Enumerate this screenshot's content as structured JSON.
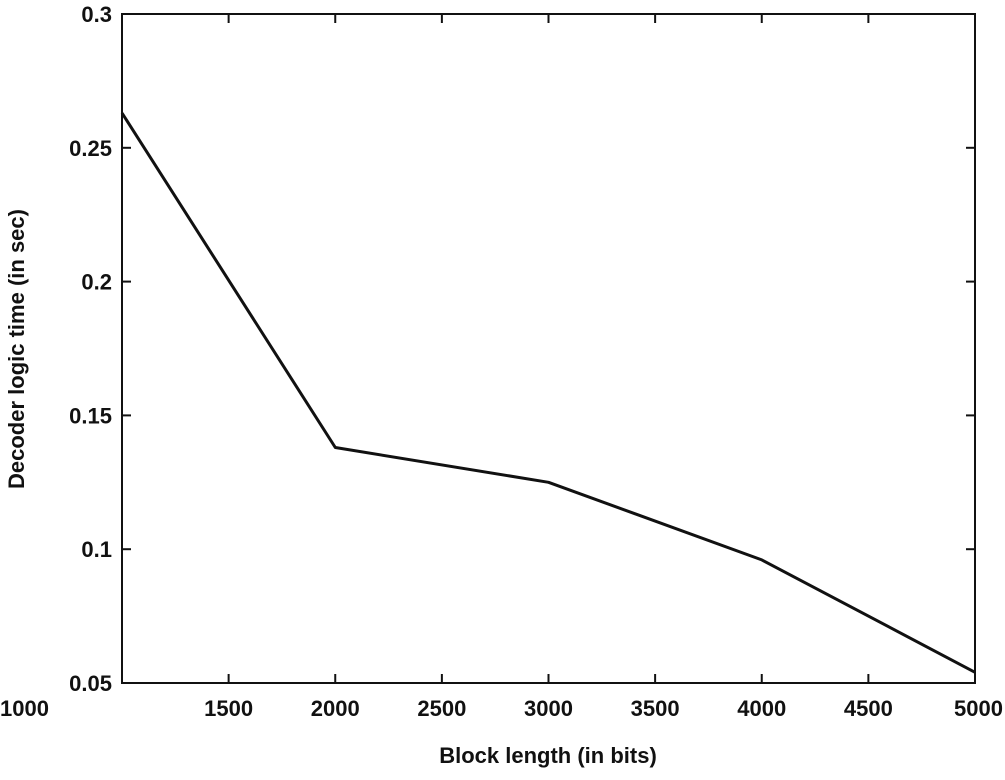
{
  "chart_data": {
    "type": "line",
    "title": "",
    "xlabel": "Block length (in bits)",
    "ylabel": "Decoder logic time (in sec)",
    "xlim": [
      1000,
      5000
    ],
    "ylim": [
      0.05,
      0.3
    ],
    "xticks": [
      1000,
      1500,
      2000,
      2500,
      3000,
      3500,
      4000,
      4500,
      5000
    ],
    "yticks": [
      0.05,
      0.1,
      0.15,
      0.2,
      0.25,
      0.3
    ],
    "xtick_labels": [
      "1000",
      "1500",
      "2000",
      "2500",
      "3000",
      "3500",
      "4000",
      "4500",
      "5000"
    ],
    "ytick_labels": [
      "0.05",
      "0.1",
      "0.15",
      "0.2",
      "0.25",
      "0.3"
    ],
    "grid": false,
    "colors": {
      "line": "#111111",
      "axes": "#111111"
    },
    "series": [
      {
        "x": [
          1000,
          2000,
          3000,
          4000,
          5000
        ],
        "y": [
          0.263,
          0.138,
          0.125,
          0.096,
          0.054
        ]
      }
    ]
  }
}
